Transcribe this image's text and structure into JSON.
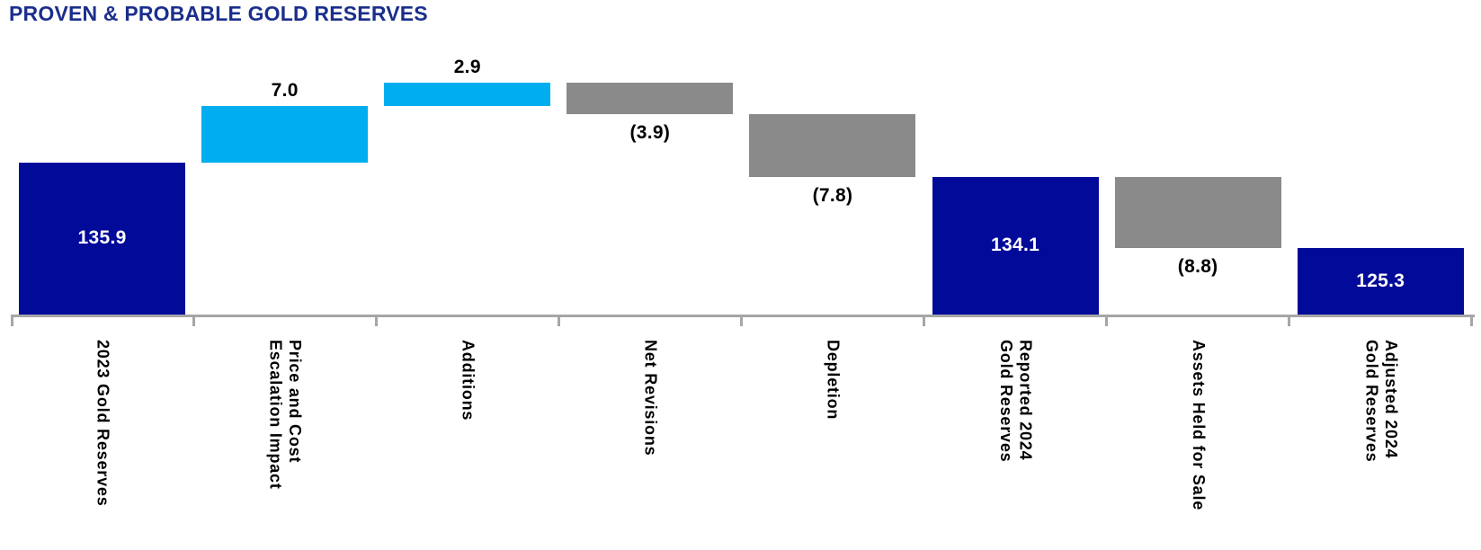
{
  "title": "PROVEN & PROBABLE GOLD RESERVES",
  "colors": {
    "total_bar": "#020A99",
    "increase_bar": "#00AEEF",
    "decrease_bar": "#8A8A8A",
    "axis": "#A6A6A6",
    "title_text": "#1B2E8C",
    "value_label_inside": "#FFFFFF",
    "value_label_outside": "#000000"
  },
  "chart_data": {
    "type": "bar",
    "subtype": "waterfall",
    "title": "PROVEN & PROBABLE GOLD RESERVES",
    "xlabel": "",
    "ylabel": "",
    "grid": false,
    "legend": false,
    "y_axis_visible": false,
    "ylim": [
      117,
      151.3
    ],
    "baseline_value": 117,
    "categories": [
      "2023 Gold Reserves",
      "Price and Cost\nEscalation Impact",
      "Additions",
      "Net Revisions",
      "Depletion",
      "Reported 2024\nGold Reserves",
      "Assets Held for Sale",
      "Adjusted 2024\nGold Reserves"
    ],
    "bars": [
      {
        "label": "2023 Gold Reserves",
        "value": 135.9,
        "display": "135.9",
        "role": "total"
      },
      {
        "label": "Price and Cost\nEscalation Impact",
        "value": 7.0,
        "display": "7.0",
        "role": "increase"
      },
      {
        "label": "Additions",
        "value": 2.9,
        "display": "2.9",
        "role": "increase"
      },
      {
        "label": "Net Revisions",
        "value": -3.9,
        "display": "(3.9)",
        "role": "decrease"
      },
      {
        "label": "Depletion",
        "value": -7.8,
        "display": "(7.8)",
        "role": "decrease"
      },
      {
        "label": "Reported 2024\nGold Reserves",
        "value": 134.1,
        "display": "134.1",
        "role": "total"
      },
      {
        "label": "Assets Held for Sale",
        "value": -8.8,
        "display": "(8.8)",
        "role": "decrease"
      },
      {
        "label": "Adjusted 2024\nGold Reserves",
        "value": 125.3,
        "display": "125.3",
        "role": "total"
      }
    ],
    "cumulative_levels": [
      135.9,
      142.9,
      145.8,
      141.9,
      134.1,
      134.1,
      125.3,
      125.3
    ]
  }
}
